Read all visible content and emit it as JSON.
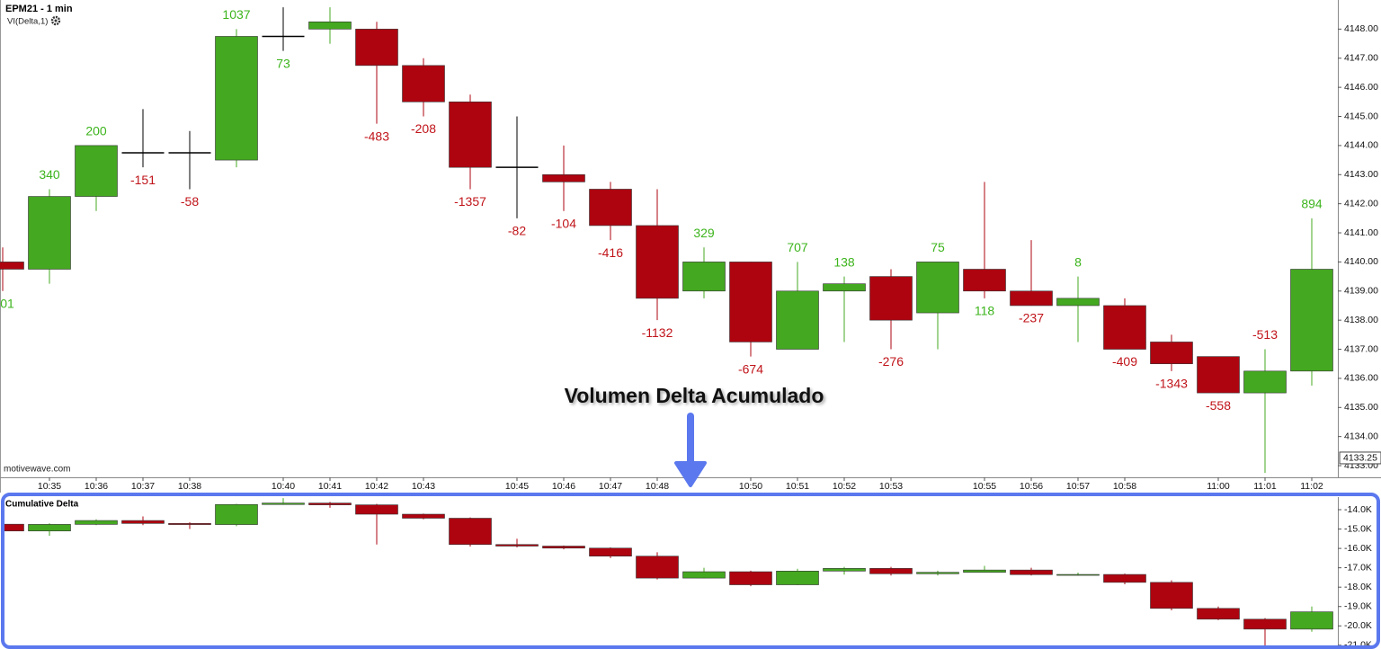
{
  "chart_data": [
    {
      "type": "candlestick",
      "title": "EPM21 - 1 min",
      "subtitle": "VI(Delta,1)",
      "source": "motivewave.com",
      "annotation": "Volumen Delta Acumulado",
      "categories": [
        null,
        "10:35",
        "10:36",
        "10:37",
        "10:38",
        null,
        "10:40",
        "10:41",
        "10:42",
        "10:43",
        null,
        "10:45",
        "10:46",
        "10:47",
        "10:48",
        null,
        "10:50",
        "10:51",
        "10:52",
        "10:53",
        null,
        "10:55",
        "10:56",
        "10:57",
        "10:58",
        null,
        "11:00",
        "11:01",
        "11:02"
      ],
      "open": [
        4140.0,
        4139.75,
        4142.25,
        4143.75,
        4143.75,
        4143.5,
        4147.75,
        4148.0,
        4148.0,
        4146.75,
        4145.5,
        4143.25,
        4143.0,
        4142.5,
        4141.25,
        4139.0,
        4140.0,
        4137.0,
        4139.0,
        4139.5,
        4138.25,
        4139.75,
        4139.0,
        4138.5,
        4138.5,
        4137.25,
        4136.75,
        4135.5,
        4136.25
      ],
      "high": [
        4140.5,
        4142.5,
        4144.0,
        4145.25,
        4144.5,
        4148.0,
        4148.75,
        4148.75,
        4148.25,
        4147.0,
        4145.75,
        4145.0,
        4144.0,
        4142.75,
        4142.5,
        4140.5,
        4140.0,
        4140.0,
        4139.5,
        4139.75,
        4140.0,
        4142.75,
        4140.75,
        4139.5,
        4138.75,
        4137.5,
        4136.75,
        4137.0,
        4141.5
      ],
      "low": [
        4139.0,
        4139.25,
        4141.75,
        4143.25,
        4142.5,
        4143.25,
        4147.25,
        4147.5,
        4144.75,
        4145.0,
        4142.5,
        4141.5,
        4141.75,
        4140.75,
        4138.0,
        4138.75,
        4136.75,
        4137.0,
        4137.25,
        4137.0,
        4137.0,
        4138.75,
        4138.5,
        4137.25,
        4137.0,
        4136.25,
        4135.5,
        4132.75,
        4135.75
      ],
      "close": [
        4139.75,
        4142.25,
        4144.0,
        4143.75,
        4143.75,
        4147.75,
        4147.75,
        4148.25,
        4146.75,
        4145.5,
        4143.25,
        4143.25,
        4142.75,
        4141.25,
        4138.75,
        4140.0,
        4137.25,
        4139.0,
        4139.25,
        4138.0,
        4140.0,
        4139.0,
        4138.5,
        4138.75,
        4137.0,
        4136.5,
        4135.5,
        4136.25,
        4139.75
      ],
      "delta_labels": [
        "01",
        "340",
        "200",
        "-151",
        "-58",
        "1037",
        "73",
        null,
        "-483",
        "-208",
        "-1357",
        "-82",
        "-104",
        "-416",
        "-1132",
        "329",
        "-674",
        "707",
        "138",
        "-276",
        "75",
        "118",
        "-237",
        "8",
        "-409",
        "-1343",
        "-558",
        "-513",
        "894"
      ],
      "up_color": "#44a820",
      "down_color": "#ae0410",
      "doji_color": "#000000",
      "ylim": [
        4132.6,
        4149.0
      ],
      "yticks": [
        {
          "value": 4133,
          "label": "4133.00"
        },
        {
          "value": 4134,
          "label": "4134.00"
        },
        {
          "value": 4135,
          "label": "4135.00"
        },
        {
          "value": 4136,
          "label": "4136.00"
        },
        {
          "value": 4137,
          "label": "4137.00"
        },
        {
          "value": 4138,
          "label": "4138.00"
        },
        {
          "value": 4139,
          "label": "4139.00"
        },
        {
          "value": 4140,
          "label": "4140.00"
        },
        {
          "value": 4141,
          "label": "4141.00"
        },
        {
          "value": 4142,
          "label": "4142.00"
        },
        {
          "value": 4143,
          "label": "4143.00"
        },
        {
          "value": 4144,
          "label": "4144.00"
        },
        {
          "value": 4145,
          "label": "4145.00"
        },
        {
          "value": 4146,
          "label": "4146.00"
        },
        {
          "value": 4147,
          "label": "4147.00"
        },
        {
          "value": 4148,
          "label": "4148.00"
        }
      ],
      "price_marker": {
        "value": 4133.25,
        "label": "4133.25"
      }
    },
    {
      "type": "candlestick",
      "title": "Cumulative Delta",
      "open": [
        -14750,
        -15100,
        -14760,
        -14560,
        -14711,
        -14769,
        -13732,
        -13659,
        -13750,
        -14233,
        -14441,
        -15798,
        -15880,
        -15984,
        -16400,
        -17532,
        -17203,
        -17877,
        -17170,
        -17032,
        -17308,
        -17233,
        -17115,
        -17352,
        -17344,
        -17753,
        -19096,
        -19654,
        -20167
      ],
      "high": [
        -14700,
        -14700,
        -14500,
        -14350,
        -14650,
        -13700,
        -13400,
        -13600,
        -13700,
        -14200,
        -14400,
        -15500,
        -15850,
        -15950,
        -16200,
        -17000,
        -17150,
        -17050,
        -16950,
        -16950,
        -17150,
        -16900,
        -17000,
        -17250,
        -17300,
        -17650,
        -19000,
        -19600,
        -19000
      ],
      "low": [
        -15150,
        -15350,
        -14800,
        -14800,
        -15000,
        -14850,
        -13750,
        -13900,
        -15800,
        -14500,
        -15900,
        -15950,
        -16050,
        -16500,
        -17600,
        -17550,
        -17950,
        -17900,
        -17350,
        -17400,
        -17400,
        -17250,
        -17400,
        -17400,
        -17850,
        -19200,
        -19700,
        -21100,
        -20300
      ],
      "close": [
        -15100,
        -14760,
        -14560,
        -14711,
        -14769,
        -13732,
        -13659,
        -13750,
        -14233,
        -14441,
        -15798,
        -15880,
        -15984,
        -16400,
        -17532,
        -17203,
        -17877,
        -17170,
        -17032,
        -17308,
        -17233,
        -17115,
        -17352,
        -17344,
        -17753,
        -19096,
        -19654,
        -20167,
        -19273
      ],
      "up_color": "#44a820",
      "down_color": "#ae0410",
      "ylim": [
        -21100,
        -13350
      ],
      "yticks": [
        {
          "value": -14000,
          "label": "-14.0K"
        },
        {
          "value": -15000,
          "label": "-15.0K"
        },
        {
          "value": -16000,
          "label": "-16.0K"
        },
        {
          "value": -17000,
          "label": "-17.0K"
        },
        {
          "value": -18000,
          "label": "-18.0K"
        },
        {
          "value": -19000,
          "label": "-19.0K"
        },
        {
          "value": -20000,
          "label": "-20.0K"
        },
        {
          "value": -21000,
          "label": "-21.0K"
        }
      ]
    }
  ]
}
